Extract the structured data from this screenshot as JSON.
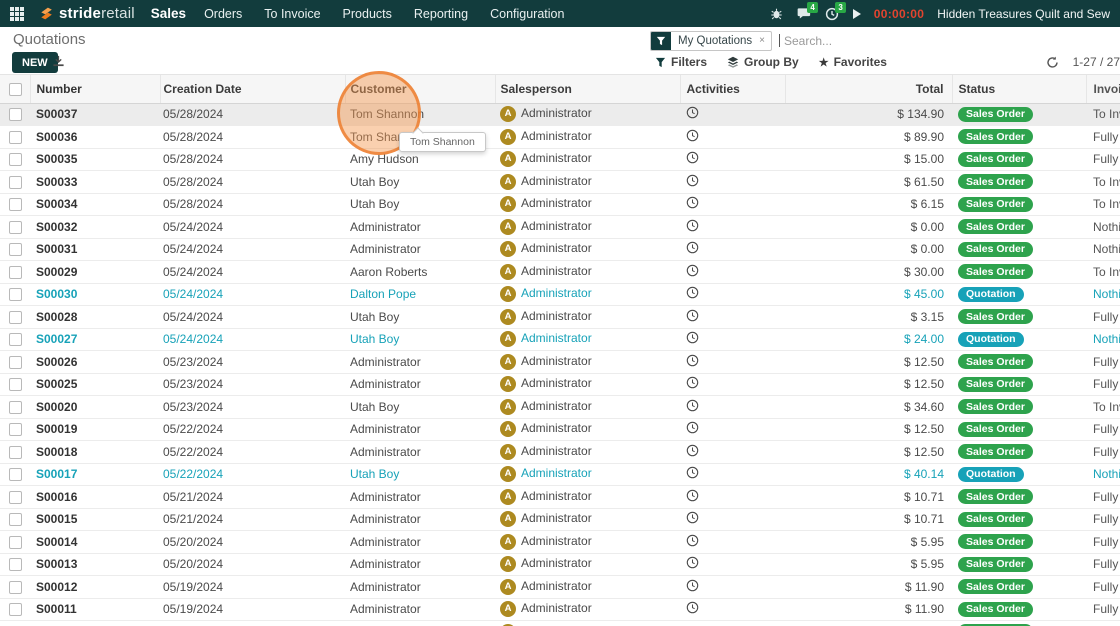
{
  "topbar": {
    "logo_bold": "stride",
    "logo_light": "retail",
    "app_name": "Sales",
    "menus": [
      "Orders",
      "To Invoice",
      "Products",
      "Reporting",
      "Configuration"
    ],
    "right": {
      "messages_count": "4",
      "activities_count": "3",
      "timer": "00:00:00",
      "company": "Hidden Treasures Quilt and Sew"
    }
  },
  "control_panel": {
    "title": "Quotations",
    "new_button": "NEW",
    "search": {
      "facet": "My Quotations",
      "facet_remove": "×",
      "placeholder": "Search..."
    },
    "filters_label": "Filters",
    "group_by_label": "Group By",
    "favorites_label": "Favorites",
    "pager": "1-27 / 27"
  },
  "overlay": {
    "tooltip": "Tom Shannon"
  },
  "table": {
    "columns": [
      "Number",
      "Creation Date",
      "Customer",
      "Salesperson",
      "Activities",
      "Total",
      "Status",
      "Invoice Status"
    ],
    "rows": [
      {
        "number": "S00037",
        "date": "05/28/2024",
        "customer": "Tom Shannon",
        "salesperson": "Administrator",
        "total": "$ 134.90",
        "status": "Sales Order",
        "state": "sale",
        "invoice": "To Invoice",
        "highlighted": true
      },
      {
        "number": "S00036",
        "date": "05/28/2024",
        "customer": "Tom Shannon",
        "salesperson": "Administrator",
        "total": "$ 89.90",
        "status": "Sales Order",
        "state": "sale",
        "invoice": "Fully Invoiced"
      },
      {
        "number": "S00035",
        "date": "05/28/2024",
        "customer": "Amy Hudson",
        "salesperson": "Administrator",
        "total": "$ 15.00",
        "status": "Sales Order",
        "state": "sale",
        "invoice": "Fully Invoiced"
      },
      {
        "number": "S00033",
        "date": "05/28/2024",
        "customer": "Utah Boy",
        "salesperson": "Administrator",
        "total": "$ 61.50",
        "status": "Sales Order",
        "state": "sale",
        "invoice": "To Invoice"
      },
      {
        "number": "S00034",
        "date": "05/28/2024",
        "customer": "Utah Boy",
        "salesperson": "Administrator",
        "total": "$ 6.15",
        "status": "Sales Order",
        "state": "sale",
        "invoice": "To Invoice"
      },
      {
        "number": "S00032",
        "date": "05/24/2024",
        "customer": "Administrator",
        "salesperson": "Administrator",
        "total": "$ 0.00",
        "status": "Sales Order",
        "state": "sale",
        "invoice": "Nothing to Invoice"
      },
      {
        "number": "S00031",
        "date": "05/24/2024",
        "customer": "Administrator",
        "salesperson": "Administrator",
        "total": "$ 0.00",
        "status": "Sales Order",
        "state": "sale",
        "invoice": "Nothing to Invoice"
      },
      {
        "number": "S00029",
        "date": "05/24/2024",
        "customer": "Aaron Roberts",
        "salesperson": "Administrator",
        "total": "$ 30.00",
        "status": "Sales Order",
        "state": "sale",
        "invoice": "To Invoice"
      },
      {
        "number": "S00030",
        "date": "05/24/2024",
        "customer": "Dalton Pope",
        "salesperson": "Administrator",
        "total": "$ 45.00",
        "status": "Quotation",
        "state": "quotation",
        "invoice": "Nothing to Invoice"
      },
      {
        "number": "S00028",
        "date": "05/24/2024",
        "customer": "Utah Boy",
        "salesperson": "Administrator",
        "total": "$ 3.15",
        "status": "Sales Order",
        "state": "sale",
        "invoice": "Fully Invoiced"
      },
      {
        "number": "S00027",
        "date": "05/24/2024",
        "customer": "Utah Boy",
        "salesperson": "Administrator",
        "total": "$ 24.00",
        "status": "Quotation",
        "state": "quotation",
        "invoice": "Nothing to Invoice"
      },
      {
        "number": "S00026",
        "date": "05/23/2024",
        "customer": "Administrator",
        "salesperson": "Administrator",
        "total": "$ 12.50",
        "status": "Sales Order",
        "state": "sale",
        "invoice": "Fully Invoiced"
      },
      {
        "number": "S00025",
        "date": "05/23/2024",
        "customer": "Administrator",
        "salesperson": "Administrator",
        "total": "$ 12.50",
        "status": "Sales Order",
        "state": "sale",
        "invoice": "Fully Invoiced"
      },
      {
        "number": "S00020",
        "date": "05/23/2024",
        "customer": "Utah Boy",
        "salesperson": "Administrator",
        "total": "$ 34.60",
        "status": "Sales Order",
        "state": "sale",
        "invoice": "To Invoice"
      },
      {
        "number": "S00019",
        "date": "05/22/2024",
        "customer": "Administrator",
        "salesperson": "Administrator",
        "total": "$ 12.50",
        "status": "Sales Order",
        "state": "sale",
        "invoice": "Fully Invoiced"
      },
      {
        "number": "S00018",
        "date": "05/22/2024",
        "customer": "Administrator",
        "salesperson": "Administrator",
        "total": "$ 12.50",
        "status": "Sales Order",
        "state": "sale",
        "invoice": "Fully Invoiced"
      },
      {
        "number": "S00017",
        "date": "05/22/2024",
        "customer": "Utah Boy",
        "salesperson": "Administrator",
        "total": "$ 40.14",
        "status": "Quotation",
        "state": "quotation",
        "invoice": "Nothing to Invoice"
      },
      {
        "number": "S00016",
        "date": "05/21/2024",
        "customer": "Administrator",
        "salesperson": "Administrator",
        "total": "$ 10.71",
        "status": "Sales Order",
        "state": "sale",
        "invoice": "Fully Invoiced"
      },
      {
        "number": "S00015",
        "date": "05/21/2024",
        "customer": "Administrator",
        "salesperson": "Administrator",
        "total": "$ 10.71",
        "status": "Sales Order",
        "state": "sale",
        "invoice": "Fully Invoiced"
      },
      {
        "number": "S00014",
        "date": "05/20/2024",
        "customer": "Administrator",
        "salesperson": "Administrator",
        "total": "$ 5.95",
        "status": "Sales Order",
        "state": "sale",
        "invoice": "Fully Invoiced"
      },
      {
        "number": "S00013",
        "date": "05/20/2024",
        "customer": "Administrator",
        "salesperson": "Administrator",
        "total": "$ 5.95",
        "status": "Sales Order",
        "state": "sale",
        "invoice": "Fully Invoiced"
      },
      {
        "number": "S00012",
        "date": "05/19/2024",
        "customer": "Administrator",
        "salesperson": "Administrator",
        "total": "$ 11.90",
        "status": "Sales Order",
        "state": "sale",
        "invoice": "Fully Invoiced"
      },
      {
        "number": "S00011",
        "date": "05/19/2024",
        "customer": "Administrator",
        "salesperson": "Administrator",
        "total": "$ 11.90",
        "status": "Sales Order",
        "state": "sale",
        "invoice": "Fully Invoiced"
      },
      {
        "number": "",
        "date": "",
        "customer": "",
        "salesperson": "Administrator",
        "total": "",
        "status": "Sales Order",
        "state": "sale",
        "invoice": "",
        "partial": true
      }
    ]
  },
  "icons": {
    "apps-grid-icon": "3x3 grid",
    "logo-s-icon": "orange stylized S",
    "bug-icon": "debug bug",
    "messages-icon": "chat bubble",
    "activity-clock-icon": "clock",
    "play-icon": "play triangle",
    "filter-funnel-icon": "funnel",
    "group-by-icon": "stacked layers",
    "favorites-star-icon": "star",
    "refresh-icon": "circular arrow",
    "download-icon": "download arrow",
    "checkbox": "empty checkbox"
  },
  "colors": {
    "topbar_bg": "#123c3d",
    "accent_orange": "#ee7c22",
    "badge_green": "#2ea34d",
    "badge_teal": "#17a2b8",
    "quotation_text": "#17a2b8",
    "timer_red": "#e2442f",
    "avatar_gold": "#ad8a20",
    "notification_green": "#28a745",
    "highlight_orange": "rgba(243,150,77,0.45)"
  }
}
